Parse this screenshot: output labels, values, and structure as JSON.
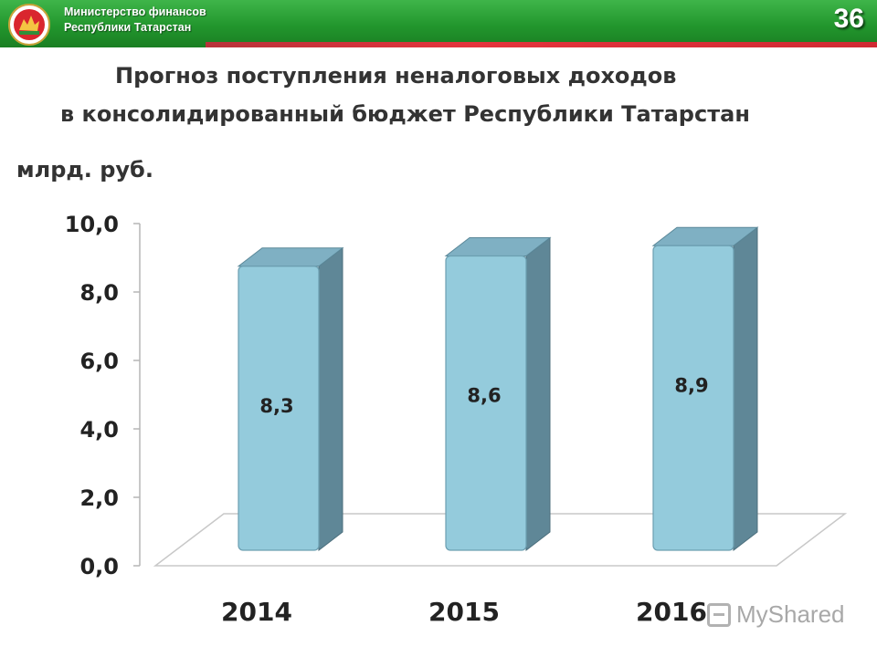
{
  "header": {
    "ministry_line1": "Министерство финансов",
    "ministry_line2": "Республики Татарстан",
    "page_number": "36"
  },
  "title": {
    "line1": "Прогноз поступления неналоговых доходов",
    "line2": "в консолидированный  бюджет Республики Татарстан"
  },
  "unit_label": "млрд. руб.",
  "watermark": "MyShared",
  "colors": {
    "header_green": "#22962d",
    "header_red": "#e5333d",
    "bar_front": "#94cbdc",
    "bar_side": "#5f8797",
    "bar_top": "#7fb0c3"
  },
  "chart_data": {
    "type": "bar",
    "categories": [
      "2014",
      "2015",
      "2016"
    ],
    "values": [
      8.3,
      8.6,
      8.9
    ],
    "value_labels": [
      "8,3",
      "8,6",
      "8,9"
    ],
    "ylim": [
      0,
      10
    ],
    "y_ticks": [
      "0,0",
      "2,0",
      "4,0",
      "6,0",
      "8,0",
      "10,0"
    ],
    "style": "3d-column",
    "grid": false,
    "legend": "none"
  }
}
